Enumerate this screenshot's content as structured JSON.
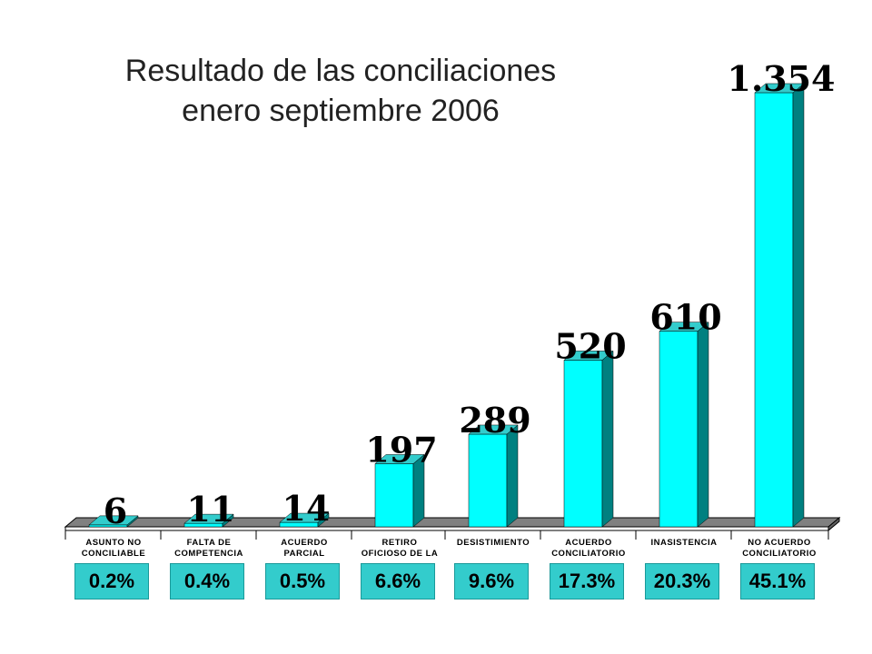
{
  "title": {
    "line1": "Resultado de las conciliaciones",
    "line2": "enero septiembre 2006"
  },
  "chart_data": {
    "type": "bar",
    "categories": [
      [
        "ASUNTO NO",
        "CONCILIABLE"
      ],
      [
        "FALTA DE",
        "COMPETENCIA"
      ],
      [
        "ACUERDO",
        "PARCIAL"
      ],
      [
        "RETIRO",
        "OFICIOSO DE LA"
      ],
      [
        "DESISTIMIENTO"
      ],
      [
        "ACUERDO",
        "CONCILIATORIO"
      ],
      [
        "INASISTENCIA"
      ],
      [
        "NO ACUERDO",
        "CONCILIATORIO"
      ]
    ],
    "values": [
      6,
      11,
      14,
      197,
      289,
      520,
      610,
      1354
    ],
    "value_labels": [
      "6",
      "11",
      "14",
      "197",
      "289",
      "520",
      "610",
      "1.354"
    ],
    "percentages": [
      "0.2%",
      "0.4%",
      "0.5%",
      "6.6%",
      "9.6%",
      "17.3%",
      "20.3%",
      "45.1%"
    ],
    "ylim": [
      0,
      1354
    ],
    "grid": false,
    "legend": "none",
    "colors": {
      "bar_front": "#00ffff",
      "bar_side": "#008080",
      "bar_top": "#33cccc",
      "floor": "#808080",
      "pct_box": "#33cccc"
    }
  }
}
